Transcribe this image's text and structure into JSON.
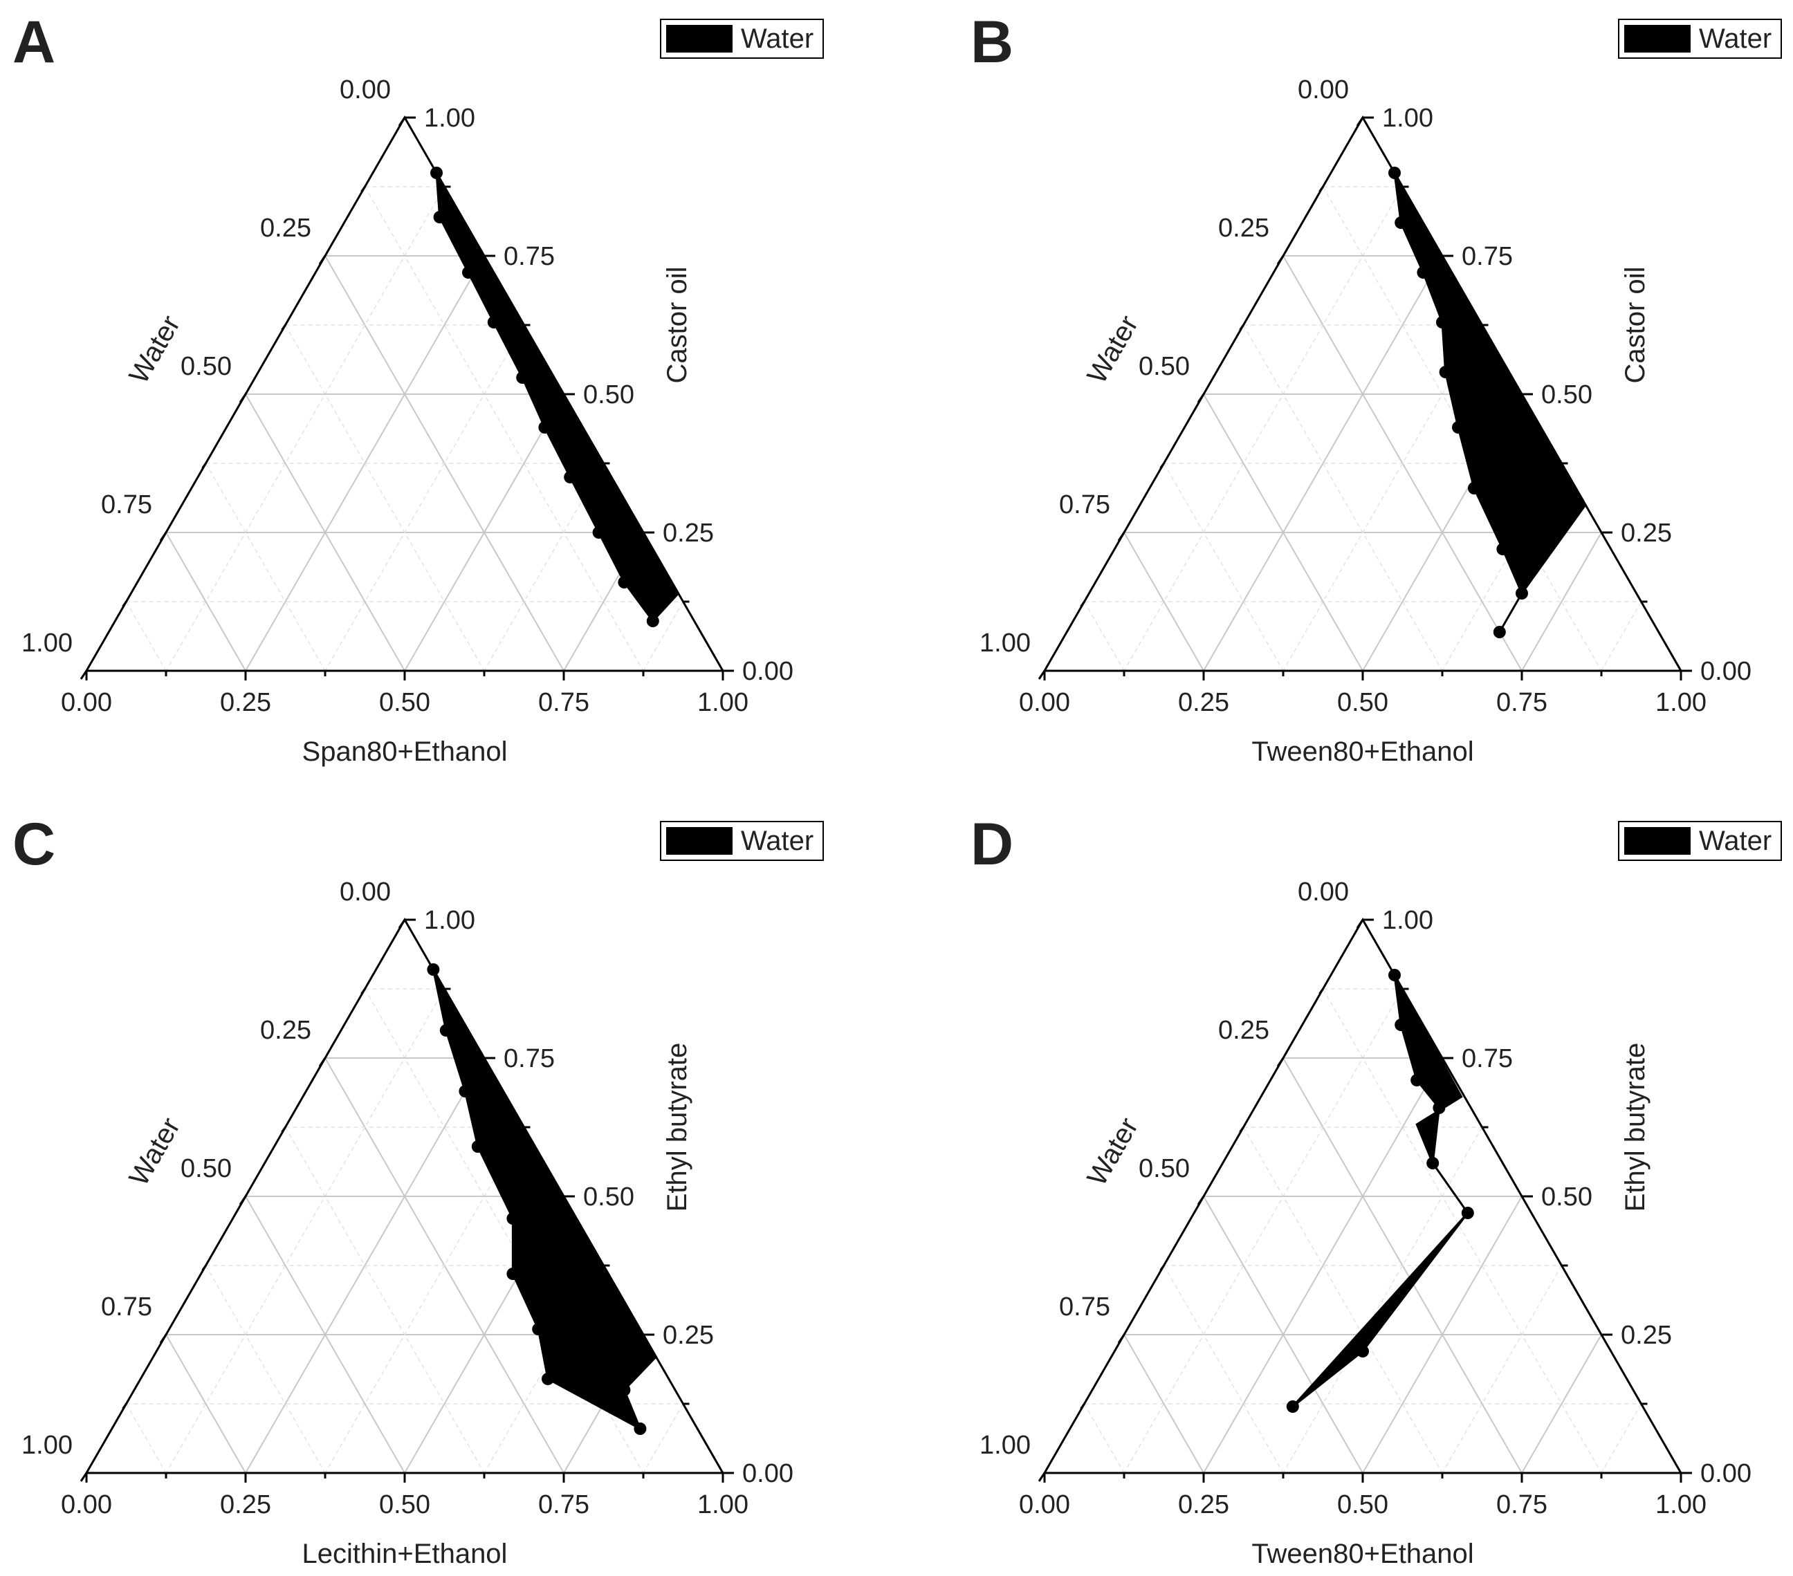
{
  "legend_label": "Water",
  "chart_data": [
    {
      "type": "ternary",
      "panel": "A",
      "axes": {
        "bottom": {
          "label": "Span80+Ethanol"
        },
        "right": {
          "label": "Castor oil"
        },
        "left": {
          "label": "Water"
        }
      },
      "ticks": [
        "0.00",
        "0.25",
        "0.50",
        "0.75",
        "1.00"
      ],
      "legend": {
        "label": "Water",
        "position": "top-right"
      },
      "region_boundary": [
        {
          "oil": 0.9,
          "water": 0.0
        },
        {
          "oil": 0.82,
          "water": 0.035
        },
        {
          "oil": 0.72,
          "water": 0.04
        },
        {
          "oil": 0.63,
          "water": 0.045
        },
        {
          "oil": 0.53,
          "water": 0.05
        },
        {
          "oil": 0.44,
          "water": 0.06
        },
        {
          "oil": 0.35,
          "water": 0.065
        },
        {
          "oil": 0.25,
          "water": 0.07
        },
        {
          "oil": 0.16,
          "water": 0.075
        },
        {
          "oil": 0.09,
          "water": 0.065
        },
        {
          "oil": 0.14,
          "water": 0.0
        }
      ],
      "points": [
        {
          "oil": 0.9,
          "water": 0.0
        },
        {
          "oil": 0.82,
          "water": 0.035
        },
        {
          "oil": 0.72,
          "water": 0.04
        },
        {
          "oil": 0.63,
          "water": 0.045
        },
        {
          "oil": 0.53,
          "water": 0.05
        },
        {
          "oil": 0.44,
          "water": 0.06
        },
        {
          "oil": 0.35,
          "water": 0.065
        },
        {
          "oil": 0.25,
          "water": 0.07
        },
        {
          "oil": 0.16,
          "water": 0.075
        },
        {
          "oil": 0.09,
          "water": 0.065
        }
      ]
    },
    {
      "type": "ternary",
      "panel": "B",
      "axes": {
        "bottom": {
          "label": "Tween80+Ethanol"
        },
        "right": {
          "label": "Castor oil"
        },
        "left": {
          "label": "Water"
        }
      },
      "ticks": [
        "0.00",
        "0.25",
        "0.50",
        "0.75",
        "1.00"
      ],
      "legend": {
        "label": "Water",
        "position": "top-right"
      },
      "region_boundary": [
        {
          "oil": 0.9,
          "water": 0.0
        },
        {
          "oil": 0.81,
          "water": 0.035
        },
        {
          "oil": 0.72,
          "water": 0.045
        },
        {
          "oil": 0.63,
          "water": 0.06
        },
        {
          "oil": 0.54,
          "water": 0.1
        },
        {
          "oil": 0.44,
          "water": 0.13
        },
        {
          "oil": 0.33,
          "water": 0.16
        },
        {
          "oil": 0.22,
          "water": 0.17
        },
        {
          "oil": 0.14,
          "water": 0.18
        },
        {
          "oil": 0.3,
          "water": 0.0
        }
      ],
      "points": [
        {
          "oil": 0.9,
          "water": 0.0
        },
        {
          "oil": 0.81,
          "water": 0.035
        },
        {
          "oil": 0.72,
          "water": 0.045
        },
        {
          "oil": 0.63,
          "water": 0.06
        },
        {
          "oil": 0.54,
          "water": 0.1
        },
        {
          "oil": 0.44,
          "water": 0.13
        },
        {
          "oil": 0.33,
          "water": 0.16
        },
        {
          "oil": 0.22,
          "water": 0.17
        },
        {
          "oil": 0.14,
          "water": 0.18
        },
        {
          "oil": 0.07,
          "water": 0.25
        }
      ],
      "tail_line": [
        {
          "oil": 0.14,
          "water": 0.18
        },
        {
          "oil": 0.07,
          "water": 0.25
        }
      ]
    },
    {
      "type": "ternary",
      "panel": "C",
      "axes": {
        "bottom": {
          "label": "Lecithin+Ethanol"
        },
        "right": {
          "label": "Ethyl butyrate"
        },
        "left": {
          "label": "Water"
        }
      },
      "ticks": [
        "0.00",
        "0.25",
        "0.50",
        "0.75",
        "1.00"
      ],
      "legend": {
        "label": "Water",
        "position": "top-right"
      },
      "region_boundary": [
        {
          "oil": 0.91,
          "water": 0.0
        },
        {
          "oil": 0.8,
          "water": 0.035
        },
        {
          "oil": 0.69,
          "water": 0.06
        },
        {
          "oil": 0.59,
          "water": 0.09
        },
        {
          "oil": 0.46,
          "water": 0.1
        },
        {
          "oil": 0.36,
          "water": 0.15
        },
        {
          "oil": 0.26,
          "water": 0.16
        },
        {
          "oil": 0.17,
          "water": 0.19
        },
        {
          "oil": 0.08,
          "water": 0.09
        },
        {
          "oil": 0.15,
          "water": 0.08
        },
        {
          "oil": 0.21,
          "water": 0.0
        }
      ],
      "points": [
        {
          "oil": 0.91,
          "water": 0.0
        },
        {
          "oil": 0.8,
          "water": 0.035
        },
        {
          "oil": 0.69,
          "water": 0.06
        },
        {
          "oil": 0.59,
          "water": 0.09
        },
        {
          "oil": 0.46,
          "water": 0.1
        },
        {
          "oil": 0.36,
          "water": 0.15
        },
        {
          "oil": 0.26,
          "water": 0.16
        },
        {
          "oil": 0.17,
          "water": 0.19
        },
        {
          "oil": 0.08,
          "water": 0.09
        },
        {
          "oil": 0.15,
          "water": 0.08
        }
      ]
    },
    {
      "type": "ternary",
      "panel": "D",
      "axes": {
        "bottom": {
          "label": "Tween80+Ethanol"
        },
        "right": {
          "label": "Ethyl butyrate"
        },
        "left": {
          "label": "Water"
        }
      },
      "ticks": [
        "0.00",
        "0.25",
        "0.50",
        "0.75",
        "1.00"
      ],
      "legend": {
        "label": "Water",
        "position": "top-right"
      },
      "region_boundary": [
        {
          "oil": 0.9,
          "water": 0.0
        },
        {
          "oil": 0.81,
          "water": 0.035
        },
        {
          "oil": 0.71,
          "water": 0.06
        },
        {
          "oil": 0.66,
          "water": 0.05
        },
        {
          "oil": 0.56,
          "water": 0.11
        },
        {
          "oil": 0.47,
          "water": 0.1
        },
        {
          "oil": 0.22,
          "water": 0.39
        },
        {
          "oil": 0.12,
          "water": 0.55
        },
        {
          "oil": 0.47,
          "water": 0.1
        },
        {
          "oil": 0.56,
          "water": 0.11
        },
        {
          "oil": 0.63,
          "water": 0.1
        },
        {
          "oil": 0.68,
          "water": 0.005
        }
      ],
      "points": [
        {
          "oil": 0.9,
          "water": 0.0
        },
        {
          "oil": 0.81,
          "water": 0.035
        },
        {
          "oil": 0.71,
          "water": 0.06
        },
        {
          "oil": 0.66,
          "water": 0.05
        },
        {
          "oil": 0.56,
          "water": 0.11
        },
        {
          "oil": 0.47,
          "water": 0.1
        },
        {
          "oil": 0.22,
          "water": 0.39
        },
        {
          "oil": 0.12,
          "water": 0.55
        }
      ]
    }
  ]
}
